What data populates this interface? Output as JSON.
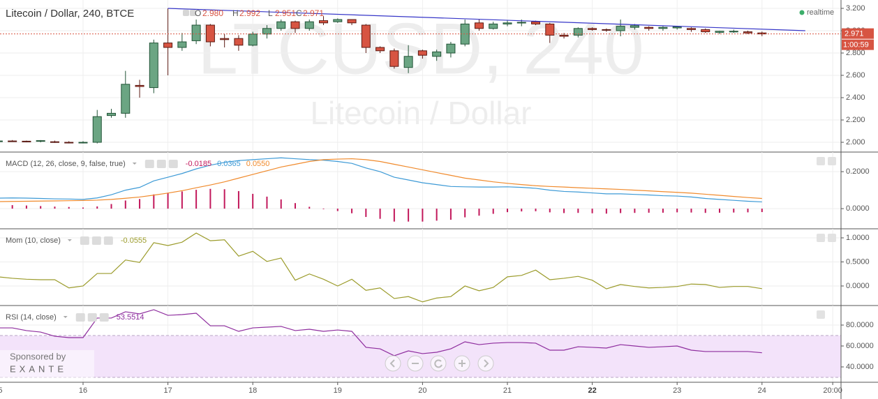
{
  "status": "realtime",
  "sponsor": {
    "text": "Sponsored by",
    "brand": "EXANTE"
  },
  "chart_data": [
    {
      "type": "candlestick",
      "title": "Litecoin / Dollar, 240, BTCE",
      "ohlc": [
        {
          "name": "O",
          "label": "2.980"
        },
        {
          "name": "H",
          "label": "2.992"
        },
        {
          "name": "L",
          "label": "2.951"
        },
        {
          "name": "C",
          "label": "2.971"
        }
      ],
      "watermark": [
        "LTCUSD, 240",
        "Litecoin / Dollar"
      ],
      "last_price_label": "2.971",
      "countdown": "1:00:59",
      "up_color": "#6ba583",
      "down_color": "#d75442",
      "ylim": [
        1.9125,
        3.275
      ],
      "yticks": [
        {
          "value": 3.2,
          "label": "3.200"
        },
        {
          "value": 3.0,
          "label": "3.000"
        },
        {
          "value": 2.8,
          "label": "2.800"
        },
        {
          "value": 2.6,
          "label": "2.600"
        },
        {
          "value": 2.4,
          "label": "2.400"
        },
        {
          "value": 2.2,
          "label": "2.200"
        },
        {
          "value": 2.0,
          "label": "2.000"
        }
      ],
      "trendline": {
        "color": "#3636c8",
        "x": [
          17,
          24.51
        ],
        "y": [
          3.2,
          3.0
        ]
      },
      "x": [
        15,
        15.1667,
        15.3333,
        15.5,
        15.6667,
        15.8333,
        16,
        16.1667,
        16.3333,
        16.5,
        16.6667,
        16.8333,
        17,
        17.1667,
        17.3333,
        17.5,
        17.6667,
        17.8333,
        18,
        18.1667,
        18.3333,
        18.5,
        18.6667,
        18.8333,
        19,
        19.1667,
        19.3333,
        19.5,
        19.6667,
        19.8333,
        20,
        20.1667,
        20.3333,
        20.5,
        20.6667,
        20.8333,
        21,
        21.1667,
        21.3333,
        21.5,
        21.6667,
        21.8333,
        22,
        22.1667,
        22.3333,
        22.5,
        22.6667,
        22.8333,
        23,
        23.1667,
        23.3333,
        23.5,
        23.6667,
        23.8333,
        24
      ],
      "open": [
        2.01,
        2.012,
        2.01,
        2.01,
        2.005,
        2.0,
        1.995,
        2.0,
        2.24,
        2.26,
        2.51,
        2.49,
        2.89,
        2.85,
        2.91,
        3.05,
        2.93,
        2.93,
        2.87,
        2.97,
        3.02,
        3.08,
        3.02,
        3.09,
        3.08,
        3.1,
        3.05,
        2.85,
        2.82,
        2.67,
        2.82,
        2.77,
        2.8,
        2.88,
        3.07,
        3.02,
        3.06,
        3.07,
        3.08,
        3.06,
        2.96,
        2.96,
        3.02,
        3.01,
        3.0,
        3.03,
        3.03,
        3.02,
        3.025,
        3.02,
        3.01,
        2.985,
        2.99,
        2.99,
        2.98
      ],
      "high": [
        2.02,
        2.02,
        2.015,
        2.02,
        2.015,
        2.01,
        2.01,
        2.29,
        2.3,
        2.64,
        2.56,
        2.92,
        3.2,
        2.98,
        3.1,
        3.06,
        2.97,
        2.96,
        2.99,
        3.05,
        3.1,
        3.09,
        3.1,
        3.13,
        3.11,
        3.1,
        3.06,
        2.86,
        2.84,
        2.87,
        2.83,
        2.83,
        2.9,
        3.1,
        3.1,
        3.08,
        3.09,
        3.1,
        3.09,
        3.07,
        2.98,
        3.03,
        3.03,
        3.02,
        3.1,
        3.06,
        3.04,
        3.04,
        3.04,
        3.03,
        3.02,
        3.0,
        3.01,
        3.0,
        2.992
      ],
      "low": [
        2.005,
        2.005,
        2.0,
        2.0,
        1.995,
        1.99,
        1.99,
        1.99,
        2.22,
        2.22,
        2.4,
        2.44,
        2.6,
        2.82,
        2.88,
        2.86,
        2.85,
        2.82,
        2.86,
        2.93,
        3.0,
        2.98,
        3.0,
        3.05,
        3.07,
        3.05,
        2.8,
        2.8,
        2.66,
        2.62,
        2.75,
        2.73,
        2.76,
        2.86,
        3.0,
        3.01,
        3.04,
        3.04,
        3.05,
        2.89,
        2.93,
        2.94,
        3.0,
        2.99,
        2.95,
        3.01,
        3.0,
        3.0,
        3.01,
        2.99,
        2.98,
        2.97,
        2.98,
        2.97,
        2.951
      ],
      "close": [
        2.012,
        2.01,
        2.005,
        2.015,
        2.0,
        1.995,
        2.0,
        2.23,
        2.26,
        2.52,
        2.5,
        2.89,
        2.85,
        2.9,
        3.05,
        2.9,
        2.92,
        2.87,
        2.97,
        3.02,
        3.08,
        3.02,
        3.08,
        3.07,
        3.1,
        3.07,
        2.85,
        2.82,
        2.68,
        2.77,
        2.78,
        2.81,
        2.88,
        3.06,
        3.02,
        3.06,
        3.07,
        3.075,
        3.06,
        2.96,
        2.95,
        3.02,
        3.01,
        3.005,
        3.04,
        3.045,
        3.02,
        3.03,
        3.035,
        3.01,
        2.99,
        2.995,
        2.995,
        2.98,
        2.971
      ]
    },
    {
      "type": "line",
      "title": "MACD (12, 26, close, 9, false, true)",
      "ylim": [
        -0.109,
        0.306
      ],
      "yticks": [
        {
          "value": 0.2,
          "label": "0.2000"
        },
        {
          "value": 0,
          "label": "0.0000"
        }
      ],
      "x": [
        15,
        15.1667,
        15.3333,
        15.5,
        15.6667,
        15.8333,
        16,
        16.1667,
        16.3333,
        16.5,
        16.6667,
        16.8333,
        17,
        17.1667,
        17.3333,
        17.5,
        17.6667,
        17.8333,
        18,
        18.1667,
        18.3333,
        18.5,
        18.6667,
        18.8333,
        19,
        19.1667,
        19.3333,
        19.5,
        19.6667,
        19.8333,
        20,
        20.1667,
        20.3333,
        20.5,
        20.6667,
        20.8333,
        21,
        21.1667,
        21.3333,
        21.5,
        21.6667,
        21.8333,
        22,
        22.1667,
        22.3333,
        22.5,
        22.6667,
        22.8333,
        23,
        23.1667,
        23.3333,
        23.5,
        23.6667,
        23.8333,
        24
      ],
      "series": [
        {
          "type": "bar",
          "color": "#c2185b",
          "legend_value": "-0.0185",
          "values": [
            0.019,
            0.019,
            0.017,
            0.014,
            0.011,
            0.009,
            0.006,
            0.012,
            0.025,
            0.044,
            0.052,
            0.077,
            0.086,
            0.093,
            0.102,
            0.107,
            0.105,
            0.095,
            0.08,
            0.065,
            0.05,
            0.03,
            0.01,
            -0.003,
            -0.013,
            -0.025,
            -0.045,
            -0.055,
            -0.07,
            -0.07,
            -0.07,
            -0.065,
            -0.06,
            -0.047,
            -0.038,
            -0.028,
            -0.019,
            -0.015,
            -0.014,
            -0.02,
            -0.024,
            -0.023,
            -0.025,
            -0.027,
            -0.024,
            -0.023,
            -0.022,
            -0.022,
            -0.02,
            -0.021,
            -0.023,
            -0.022,
            -0.021,
            -0.02,
            -0.0185
          ]
        },
        {
          "type": "line",
          "color": "#3d9ad6",
          "legend_value": "0.0365",
          "values": [
            0.057,
            0.058,
            0.057,
            0.055,
            0.053,
            0.052,
            0.05,
            0.058,
            0.075,
            0.1,
            0.115,
            0.15,
            0.17,
            0.19,
            0.215,
            0.235,
            0.25,
            0.26,
            0.265,
            0.27,
            0.275,
            0.27,
            0.265,
            0.262,
            0.255,
            0.245,
            0.22,
            0.2,
            0.17,
            0.155,
            0.14,
            0.13,
            0.12,
            0.118,
            0.117,
            0.117,
            0.118,
            0.115,
            0.11,
            0.1,
            0.093,
            0.09,
            0.085,
            0.08,
            0.08,
            0.077,
            0.074,
            0.07,
            0.068,
            0.063,
            0.055,
            0.05,
            0.045,
            0.04,
            0.0365
          ]
        },
        {
          "type": "line",
          "color": "#f08a2c",
          "legend_value": "0.0550",
          "values": [
            0.038,
            0.039,
            0.04,
            0.041,
            0.042,
            0.043,
            0.044,
            0.046,
            0.05,
            0.056,
            0.063,
            0.073,
            0.084,
            0.097,
            0.113,
            0.128,
            0.145,
            0.165,
            0.185,
            0.205,
            0.225,
            0.24,
            0.255,
            0.265,
            0.268,
            0.27,
            0.265,
            0.255,
            0.24,
            0.225,
            0.21,
            0.195,
            0.18,
            0.165,
            0.155,
            0.145,
            0.137,
            0.13,
            0.124,
            0.12,
            0.117,
            0.113,
            0.11,
            0.107,
            0.104,
            0.1,
            0.096,
            0.092,
            0.088,
            0.084,
            0.078,
            0.072,
            0.066,
            0.06,
            0.055
          ]
        }
      ]
    },
    {
      "type": "line",
      "title": "Mom (10, close)",
      "ylim": [
        -0.406,
        1.188
      ],
      "yticks": [
        {
          "value": 1,
          "label": "1.0000"
        },
        {
          "value": 0.5,
          "label": "0.5000"
        },
        {
          "value": 0,
          "label": "0.0000"
        }
      ],
      "x": [
        15,
        15.1667,
        15.3333,
        15.5,
        15.6667,
        15.8333,
        16,
        16.1667,
        16.3333,
        16.5,
        16.6667,
        16.8333,
        17,
        17.1667,
        17.3333,
        17.5,
        17.6667,
        17.8333,
        18,
        18.1667,
        18.3333,
        18.5,
        18.6667,
        18.8333,
        19,
        19.1667,
        19.3333,
        19.5,
        19.6667,
        19.8333,
        20,
        20.1667,
        20.3333,
        20.5,
        20.6667,
        20.8333,
        21,
        21.1667,
        21.3333,
        21.5,
        21.6667,
        21.8333,
        22,
        22.1667,
        22.3333,
        22.5,
        22.6667,
        22.8333,
        23,
        23.1667,
        23.3333,
        23.5,
        23.6667,
        23.8333,
        24
      ],
      "series": [
        {
          "type": "line",
          "color": "#9b9b2a",
          "legend_value": "-0.0555",
          "values": [
            0.19,
            0.16,
            0.14,
            0.13,
            0.13,
            -0.04,
            0,
            0.26,
            0.26,
            0.54,
            0.49,
            0.9,
            0.84,
            0.91,
            1.1,
            0.94,
            0.96,
            0.62,
            0.72,
            0.51,
            0.58,
            0.12,
            0.25,
            0.14,
            0,
            0.14,
            -0.09,
            -0.04,
            -0.26,
            -0.22,
            -0.33,
            -0.25,
            -0.22,
            0,
            -0.1,
            -0.03,
            0.19,
            0.22,
            0.33,
            0.13,
            0.16,
            0.2,
            0.12,
            -0.06,
            0.03,
            -0.01,
            -0.04,
            -0.03,
            -0.01,
            0.04,
            0.03,
            -0.03,
            -0.01,
            -0.01,
            -0.0555
          ]
        }
      ]
    },
    {
      "type": "line",
      "title": "RSI (14, close)",
      "ylim": [
        25.33,
        98.67
      ],
      "yticks": [
        {
          "value": 80,
          "label": "80.0000"
        },
        {
          "value": 60,
          "label": "60.0000"
        },
        {
          "value": 40,
          "label": "40.0000"
        }
      ],
      "band": [
        30,
        70
      ],
      "band_color": "#f3e3fa",
      "xlim": [
        15.0214,
        24.931
      ],
      "xticks": [
        15,
        16,
        17,
        18,
        19,
        20,
        21,
        22,
        23,
        24,
        {
          "value": 24.8333,
          "label": "20:00"
        }
      ],
      "x": [
        15,
        15.1667,
        15.3333,
        15.5,
        15.6667,
        15.8333,
        16,
        16.1667,
        16.3333,
        16.5,
        16.6667,
        16.8333,
        17,
        17.1667,
        17.3333,
        17.5,
        17.6667,
        17.8333,
        18,
        18.1667,
        18.3333,
        18.5,
        18.6667,
        18.8333,
        19,
        19.1667,
        19.3333,
        19.5,
        19.6667,
        19.8333,
        20,
        20.1667,
        20.3333,
        20.5,
        20.6667,
        20.8333,
        21,
        21.1667,
        21.3333,
        21.5,
        21.6667,
        21.8333,
        22,
        22.1667,
        22.3333,
        22.5,
        22.6667,
        22.8333,
        23,
        23.1667,
        23.3333,
        23.5,
        23.6667,
        23.8333,
        24
      ],
      "series": [
        {
          "type": "line",
          "color": "#8e2d9e",
          "legend_value": "53.5514",
          "values": [
            77.3,
            77.3,
            74.7,
            73.3,
            69.3,
            68,
            68,
            86.7,
            86.7,
            92.7,
            90.7,
            94.7,
            89.3,
            90,
            91.3,
            79.3,
            79.3,
            74,
            77.3,
            78,
            78.7,
            74.7,
            76,
            74,
            75.3,
            74,
            58.7,
            57.3,
            50.7,
            55.3,
            52.7,
            54,
            57.3,
            64,
            61.3,
            62.7,
            63.3,
            63.3,
            62.7,
            56,
            56,
            59.3,
            58.7,
            58,
            61.3,
            60,
            58.7,
            59.3,
            60,
            56,
            54.7,
            54.7,
            54.7,
            54.7,
            53.5514
          ]
        }
      ]
    }
  ]
}
